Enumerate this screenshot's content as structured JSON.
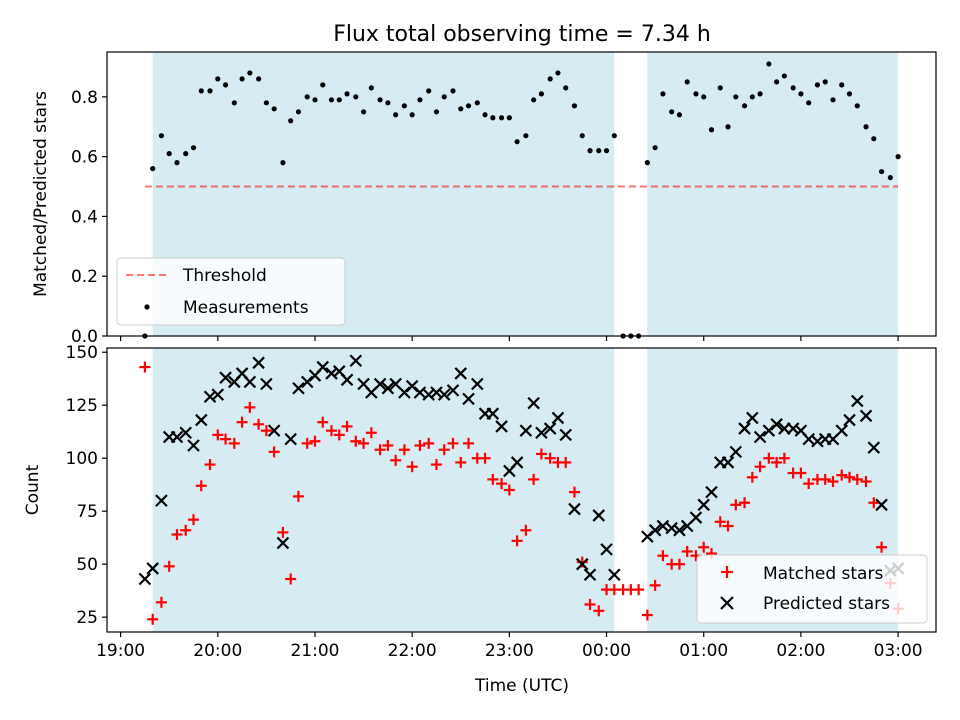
{
  "figure": {
    "title": "Flux total observing time = 7.34 h",
    "xlabel": "Time (UTC)",
    "x_tick_labels": [
      "19:00",
      "20:00",
      "21:00",
      "22:00",
      "23:00",
      "00:00",
      "01:00",
      "02:00",
      "03:00"
    ]
  },
  "colors": {
    "shade": "#add8e6",
    "threshold": "#ff0000",
    "measurement": "#000000",
    "matched": "#ff0000",
    "predicted": "#000000"
  },
  "chart_data": [
    {
      "type": "scatter",
      "panel": "top",
      "ylabel": "Matched/Predicted stars",
      "ylim": [
        0,
        0.95
      ],
      "xlim_hours": [
        18.86,
        27.39
      ],
      "y_tick_labels": [
        "0.0",
        "0.2",
        "0.4",
        "0.6",
        "0.8"
      ],
      "y_ticks": [
        0,
        0.2,
        0.4,
        0.6,
        0.8
      ],
      "shaded_intervals_hours": [
        [
          19.33,
          24.08
        ],
        [
          24.42,
          27.0
        ]
      ],
      "threshold": {
        "name": "Threshold",
        "value": 0.5,
        "x_range_hours": [
          19.25,
          27.0
        ]
      },
      "legend": {
        "position": "lower left",
        "entries": [
          "Threshold",
          "Measurements"
        ]
      },
      "series": [
        {
          "name": "Measurements",
          "marker": "dot",
          "color": "#000000",
          "x": [
            19.25,
            19.33,
            19.42,
            19.5,
            19.58,
            19.67,
            19.75,
            19.83,
            19.92,
            20.0,
            20.08,
            20.17,
            20.25,
            20.33,
            20.42,
            20.5,
            20.58,
            20.67,
            20.75,
            20.83,
            20.92,
            21.0,
            21.08,
            21.17,
            21.25,
            21.33,
            21.42,
            21.5,
            21.58,
            21.67,
            21.75,
            21.83,
            21.92,
            22.0,
            22.08,
            22.17,
            22.25,
            22.33,
            22.42,
            22.5,
            22.58,
            22.67,
            22.75,
            22.83,
            22.92,
            23.0,
            23.08,
            23.17,
            23.25,
            23.33,
            23.42,
            23.5,
            23.58,
            23.67,
            23.75,
            23.83,
            23.92,
            24.0,
            24.08,
            24.17,
            24.25,
            24.33,
            24.42,
            24.5,
            24.58,
            24.67,
            24.75,
            24.83,
            24.92,
            25.0,
            25.08,
            25.17,
            25.25,
            25.33,
            25.42,
            25.5,
            25.58,
            25.67,
            25.75,
            25.83,
            25.92,
            26.0,
            26.08,
            26.17,
            26.25,
            26.33,
            26.42,
            26.5,
            26.58,
            26.67,
            26.75,
            26.83,
            26.92,
            27.0
          ],
          "y": [
            0.0,
            0.56,
            0.67,
            0.61,
            0.58,
            0.61,
            0.63,
            0.82,
            0.82,
            0.86,
            0.84,
            0.78,
            0.86,
            0.88,
            0.86,
            0.78,
            0.76,
            0.58,
            0.72,
            0.75,
            0.8,
            0.79,
            0.84,
            0.79,
            0.79,
            0.81,
            0.8,
            0.75,
            0.83,
            0.79,
            0.78,
            0.74,
            0.77,
            0.74,
            0.79,
            0.82,
            0.75,
            0.8,
            0.82,
            0.76,
            0.77,
            0.78,
            0.74,
            0.73,
            0.73,
            0.73,
            0.65,
            0.67,
            0.79,
            0.81,
            0.86,
            0.88,
            0.83,
            0.77,
            0.67,
            0.62,
            0.62,
            0.62,
            0.67,
            0.0,
            0.0,
            0.0,
            0.58,
            0.63,
            0.81,
            0.75,
            0.74,
            0.85,
            0.81,
            0.8,
            0.69,
            0.83,
            0.7,
            0.8,
            0.77,
            0.8,
            0.81,
            0.91,
            0.85,
            0.87,
            0.83,
            0.81,
            0.78,
            0.84,
            0.85,
            0.79,
            0.84,
            0.81,
            0.77,
            0.7,
            0.66,
            0.55,
            0.53,
            0.6
          ]
        }
      ]
    },
    {
      "type": "scatter",
      "panel": "bottom",
      "ylabel": "Count",
      "ylim": [
        18,
        152
      ],
      "xlim_hours": [
        18.86,
        27.39
      ],
      "y_tick_labels": [
        "25",
        "50",
        "75",
        "100",
        "125",
        "150"
      ],
      "y_ticks": [
        25,
        50,
        75,
        100,
        125,
        150
      ],
      "shaded_intervals_hours": [
        [
          19.33,
          24.08
        ],
        [
          24.42,
          27.0
        ]
      ],
      "legend": {
        "position": "lower right",
        "entries": [
          "Matched stars",
          "Predicted stars"
        ]
      },
      "series": [
        {
          "name": "Matched stars",
          "marker": "plus",
          "color": "#ff0000",
          "x": [
            19.25,
            19.33,
            19.42,
            19.5,
            19.58,
            19.67,
            19.75,
            19.83,
            19.92,
            20.0,
            20.08,
            20.17,
            20.25,
            20.33,
            20.42,
            20.5,
            20.58,
            20.67,
            20.75,
            20.83,
            20.92,
            21.0,
            21.08,
            21.17,
            21.25,
            21.33,
            21.42,
            21.5,
            21.58,
            21.67,
            21.75,
            21.83,
            21.92,
            22.0,
            22.08,
            22.17,
            22.25,
            22.33,
            22.42,
            22.5,
            22.58,
            22.67,
            22.75,
            22.83,
            22.92,
            23.0,
            23.08,
            23.17,
            23.25,
            23.33,
            23.42,
            23.5,
            23.58,
            23.67,
            23.75,
            23.83,
            23.92,
            24.0,
            24.08,
            24.17,
            24.25,
            24.33,
            24.42,
            24.5,
            24.58,
            24.67,
            24.75,
            24.83,
            24.92,
            25.0,
            25.08,
            25.17,
            25.25,
            25.33,
            25.42,
            25.5,
            25.58,
            25.67,
            25.75,
            25.83,
            25.92,
            26.0,
            26.08,
            26.17,
            26.25,
            26.33,
            26.42,
            26.5,
            26.58,
            26.67,
            26.75,
            26.83,
            26.92,
            27.0
          ],
          "y": [
            143,
            24,
            32,
            49,
            64,
            66,
            71,
            87,
            97,
            111,
            109,
            107,
            117,
            124,
            116,
            113,
            103,
            65,
            43,
            82,
            107,
            108,
            117,
            113,
            111,
            115,
            108,
            107,
            112,
            104,
            106,
            99,
            104,
            96,
            106,
            107,
            97,
            104,
            107,
            98,
            107,
            100,
            100,
            90,
            88,
            85,
            61,
            66,
            90,
            102,
            100,
            98,
            98,
            84,
            51,
            31,
            28,
            38,
            38,
            38,
            38,
            38,
            26,
            40,
            54,
            50,
            50,
            56,
            54,
            58,
            55,
            70,
            68,
            78,
            79,
            91,
            96,
            100,
            98,
            100,
            93,
            93,
            88,
            90,
            90,
            89,
            92,
            91,
            90,
            89,
            79,
            58,
            41,
            29
          ]
        },
        {
          "name": "Predicted stars",
          "marker": "cross",
          "color": "#000000",
          "x": [
            19.25,
            19.33,
            19.42,
            19.5,
            19.58,
            19.67,
            19.75,
            19.83,
            19.92,
            20.0,
            20.08,
            20.17,
            20.25,
            20.33,
            20.42,
            20.5,
            20.58,
            20.67,
            20.75,
            20.83,
            20.92,
            21.0,
            21.08,
            21.17,
            21.25,
            21.33,
            21.42,
            21.5,
            21.58,
            21.67,
            21.75,
            21.83,
            21.92,
            22.0,
            22.08,
            22.17,
            22.25,
            22.33,
            22.42,
            22.5,
            22.58,
            22.67,
            22.75,
            22.83,
            22.92,
            23.0,
            23.08,
            23.17,
            23.25,
            23.33,
            23.42,
            23.5,
            23.58,
            23.67,
            23.75,
            23.83,
            23.92,
            24.0,
            24.08,
            24.42,
            24.5,
            24.58,
            24.67,
            24.75,
            24.83,
            24.92,
            25.0,
            25.08,
            25.17,
            25.25,
            25.33,
            25.42,
            25.5,
            25.58,
            25.67,
            25.75,
            25.83,
            25.92,
            26.0,
            26.08,
            26.17,
            26.25,
            26.33,
            26.42,
            26.5,
            26.58,
            26.67,
            26.75,
            26.83,
            26.92,
            27.0
          ],
          "y": [
            43,
            48,
            80,
            110,
            110,
            112,
            106,
            118,
            129,
            130,
            138,
            136,
            140,
            136,
            145,
            135,
            113,
            60,
            109,
            133,
            136,
            139,
            143,
            140,
            141,
            137,
            146,
            135,
            131,
            135,
            133,
            135,
            131,
            134,
            131,
            130,
            131,
            130,
            132,
            140,
            128,
            135,
            121,
            121,
            115,
            94,
            98,
            113,
            126,
            112,
            114,
            119,
            111,
            76,
            50,
            45,
            73,
            57,
            45,
            63,
            66,
            68,
            67,
            66,
            68,
            72,
            78,
            84,
            98,
            98,
            103,
            114,
            119,
            110,
            113,
            116,
            114,
            114,
            113,
            109,
            108,
            109,
            109,
            113,
            118,
            127,
            120,
            105,
            78,
            47,
            48
          ]
        }
      ]
    }
  ]
}
